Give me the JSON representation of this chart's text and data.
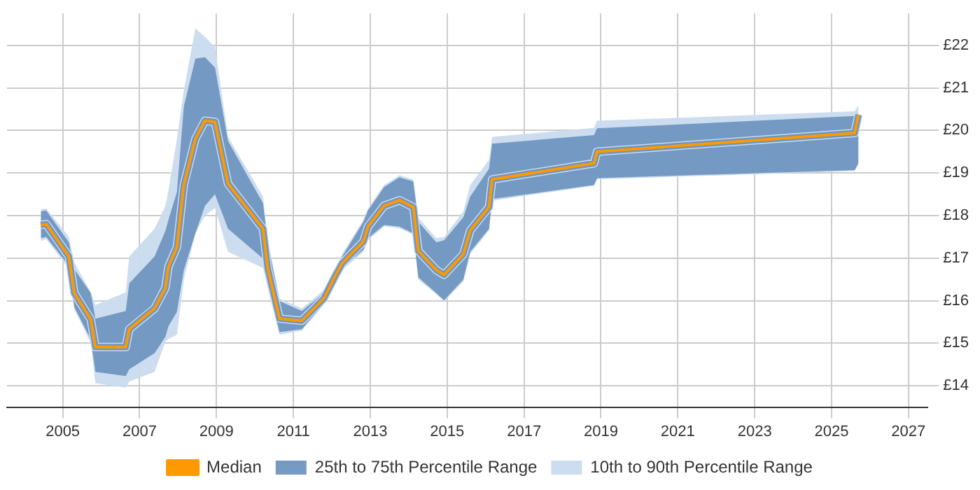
{
  "chart_data": {
    "type": "line",
    "x": [
      2004.43,
      2004.57,
      2005.16,
      2005.3,
      2005.73,
      2005.85,
      2006.64,
      2006.73,
      2007.39,
      2007.67,
      2007.75,
      2007.97,
      2008.15,
      2008.45,
      2008.7,
      2008.96,
      2009.3,
      2010.21,
      2010.33,
      2010.64,
      2011.22,
      2011.79,
      2012.1,
      2012.27,
      2012.82,
      2012.94,
      2013.36,
      2013.76,
      2014.12,
      2014.25,
      2014.72,
      2014.92,
      2015.42,
      2015.6,
      2016.09,
      2016.17,
      2018.82,
      2018.9,
      2025.6,
      2025.7
    ],
    "series": [
      {
        "name": "Median",
        "type": "line",
        "color": "#ff9900",
        "values": [
          17.78,
          17.8,
          17.04,
          16.18,
          15.56,
          14.91,
          14.91,
          15.33,
          15.82,
          16.3,
          16.8,
          17.26,
          18.72,
          19.8,
          20.23,
          20.2,
          18.75,
          17.69,
          16.77,
          15.58,
          15.53,
          16.05,
          16.6,
          16.88,
          17.39,
          17.74,
          18.23,
          18.36,
          18.2,
          17.17,
          16.72,
          16.61,
          17.09,
          17.65,
          18.2,
          18.85,
          19.23,
          19.5,
          19.94,
          20.37
        ]
      },
      {
        "name": "25th to 75th Percentile Range",
        "type": "line",
        "color": "#6f95c0",
        "values": [
          17.78,
          17.8,
          17.04,
          16.18,
          15.56,
          14.91,
          14.91,
          15.33,
          15.82,
          16.3,
          16.8,
          17.26,
          18.72,
          19.8,
          20.23,
          20.2,
          18.75,
          17.69,
          16.77,
          15.58,
          15.53,
          16.05,
          16.6,
          16.88,
          17.39,
          17.74,
          18.23,
          18.36,
          18.2,
          17.17,
          16.72,
          16.61,
          17.09,
          17.65,
          18.2,
          18.85,
          19.23,
          19.5,
          19.94,
          20.37
        ],
        "lower": [
          17.47,
          17.5,
          16.82,
          15.85,
          15.09,
          14.33,
          14.23,
          14.39,
          14.77,
          15.15,
          15.4,
          15.74,
          16.72,
          17.58,
          18.23,
          18.5,
          17.69,
          16.99,
          16.39,
          15.26,
          15.33,
          15.93,
          16.5,
          16.77,
          17.2,
          17.47,
          17.78,
          17.74,
          17.58,
          16.55,
          16.18,
          16.01,
          16.5,
          17.15,
          17.69,
          18.39,
          18.72,
          18.88,
          19.07,
          19.23
        ],
        "upper": [
          18.1,
          18.12,
          17.37,
          16.74,
          16.18,
          15.58,
          15.76,
          16.41,
          17.04,
          17.64,
          17.9,
          18.55,
          20.56,
          21.69,
          21.72,
          21.48,
          19.75,
          18.29,
          17.37,
          15.99,
          15.76,
          16.18,
          16.7,
          17.04,
          17.85,
          18.12,
          18.67,
          18.9,
          18.8,
          17.85,
          17.37,
          17.42,
          17.96,
          18.45,
          19.1,
          19.69,
          19.89,
          20.05,
          20.34,
          20.4
        ]
      },
      {
        "name": "10th to 90th Percentile Range",
        "type": "line",
        "color": "#c9dbee",
        "values": [
          17.78,
          17.8,
          17.04,
          16.18,
          15.56,
          14.91,
          14.91,
          15.33,
          15.82,
          16.3,
          16.8,
          17.26,
          18.72,
          19.8,
          20.23,
          20.2,
          18.75,
          17.69,
          16.77,
          15.58,
          15.53,
          16.05,
          16.6,
          16.88,
          17.39,
          17.74,
          18.23,
          18.36,
          18.2,
          17.17,
          16.72,
          16.61,
          17.09,
          17.65,
          18.2,
          18.85,
          19.23,
          19.5,
          19.94,
          20.37
        ],
        "lower": [
          17.4,
          17.45,
          16.75,
          15.8,
          15.0,
          14.06,
          13.96,
          14.1,
          14.33,
          15.04,
          15.1,
          15.2,
          16.5,
          17.58,
          18.0,
          18.18,
          17.15,
          16.77,
          16.3,
          15.2,
          15.3,
          15.9,
          16.45,
          16.72,
          17.15,
          17.42,
          17.75,
          17.7,
          17.55,
          16.5,
          16.15,
          15.98,
          16.45,
          17.1,
          17.65,
          18.35,
          18.7,
          18.85,
          19.05,
          19.2
        ],
        "upper": [
          18.15,
          18.17,
          17.5,
          16.9,
          16.2,
          15.9,
          16.2,
          17.04,
          17.69,
          18.23,
          18.6,
          19.8,
          20.94,
          22.4,
          22.2,
          21.96,
          19.85,
          18.45,
          17.45,
          16.05,
          15.82,
          16.25,
          16.75,
          17.1,
          17.9,
          18.17,
          18.72,
          18.95,
          18.85,
          17.95,
          17.47,
          17.5,
          18.1,
          18.72,
          19.31,
          19.85,
          20.06,
          20.23,
          20.45,
          20.6
        ]
      }
    ],
    "xlim": [
      2003.55,
      2027.5
    ],
    "xticks": [
      2005,
      2007,
      2009,
      2011,
      2013,
      2015,
      2017,
      2019,
      2021,
      2023,
      2025,
      2027
    ],
    "ylim": [
      13.5,
      22.75
    ],
    "yticks": [
      {
        "value": 14,
        "label": "£14"
      },
      {
        "value": 15,
        "label": "£15"
      },
      {
        "value": 16,
        "label": "£16"
      },
      {
        "value": 17,
        "label": "£17"
      },
      {
        "value": 18,
        "label": "£18"
      },
      {
        "value": 19,
        "label": "£19"
      },
      {
        "value": 20,
        "label": "£20"
      },
      {
        "value": 21,
        "label": "£21"
      },
      {
        "value": 22,
        "label": "£22"
      }
    ],
    "grid": true,
    "legend": "bottom",
    "marker": "none",
    "line_style": "solid"
  }
}
